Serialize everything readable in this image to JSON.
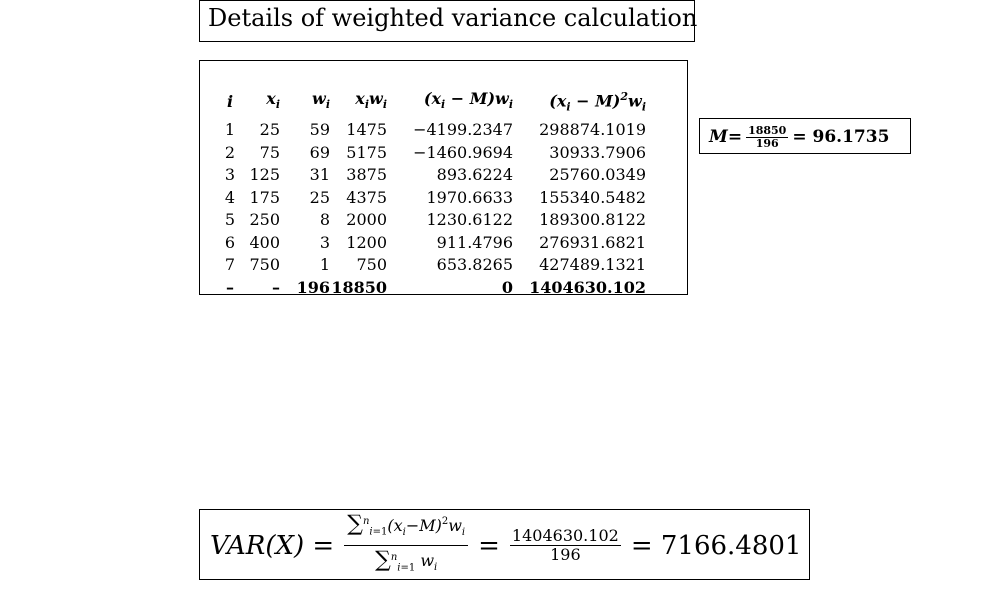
{
  "title": "Details of weighted variance calculation",
  "table": {
    "rows": [
      [
        "1",
        "25",
        "59",
        "1475",
        "−4199.2347",
        "298874.1019"
      ],
      [
        "2",
        "75",
        "69",
        "5175",
        "−1460.9694",
        "30933.7906"
      ],
      [
        "3",
        "125",
        "31",
        "3875",
        "893.6224",
        "25760.0349"
      ],
      [
        "4",
        "175",
        "25",
        "4375",
        "1970.6633",
        "155340.5482"
      ],
      [
        "5",
        "250",
        "8",
        "2000",
        "1230.6122",
        "189300.8122"
      ],
      [
        "6",
        "400",
        "3",
        "1200",
        "911.4796",
        "276931.6821"
      ],
      [
        "7",
        "750",
        "1",
        "750",
        "653.8265",
        "427489.1321"
      ]
    ],
    "totals": [
      "–",
      "–",
      "196",
      "18850",
      "0",
      "1404630.102"
    ]
  },
  "mean": {
    "label": "M=",
    "numerator": "18850",
    "denominator": "196",
    "result": "= 96.1735"
  },
  "variance": {
    "lhs": "VAR(X) =",
    "sum_numerator_value": "1404630.102",
    "sum_denominator_value": "196",
    "result": "= 7166.4801"
  }
}
